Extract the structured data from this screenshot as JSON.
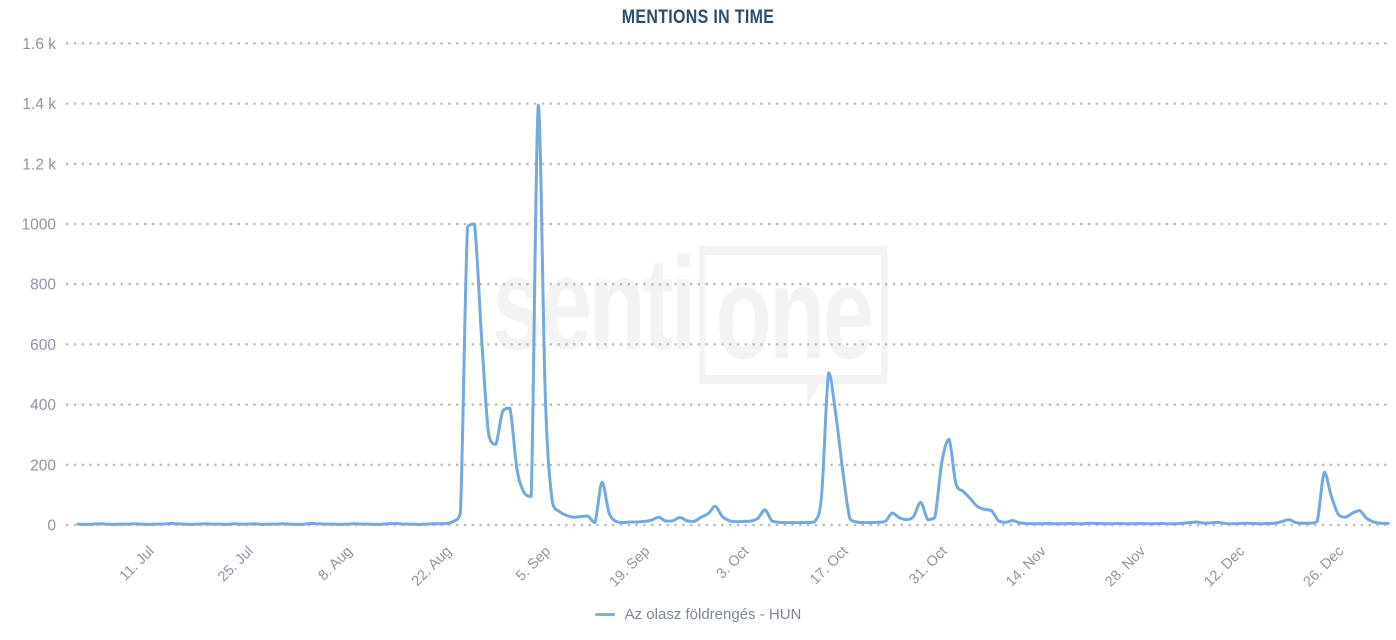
{
  "chart_data": {
    "type": "line",
    "title": "MENTIONS IN TIME",
    "xlabel": "",
    "ylabel": "",
    "ylim": [
      0,
      1600
    ],
    "grid": "horizontal dotted",
    "legend_position": "bottom-center",
    "y_ticks": [
      {
        "label": "1.6 k",
        "value": 1600
      },
      {
        "label": "1.4 k",
        "value": 1400
      },
      {
        "label": "1.2 k",
        "value": 1200
      },
      {
        "label": "1000",
        "value": 1000
      },
      {
        "label": "800",
        "value": 800
      },
      {
        "label": "600",
        "value": 600
      },
      {
        "label": "400",
        "value": 400
      },
      {
        "label": "200",
        "value": 200
      },
      {
        "label": "0",
        "value": 0
      }
    ],
    "x_tick_labels": [
      "11. Jul",
      "25. Jul",
      "8. Aug",
      "22. Aug",
      "5. Sep",
      "19. Sep",
      "3. Oct",
      "17. Oct",
      "31. Oct",
      "14. Nov",
      "28. Nov",
      "12. Dec",
      "26. Dec"
    ],
    "series": [
      {
        "name": "Az olasz földrengés - HUN",
        "color": "#74a9df",
        "dates": [
          "2. Jul",
          "3. Jul",
          "4. Jul",
          "5. Jul",
          "6. Jul",
          "7. Jul",
          "8. Jul",
          "9. Jul",
          "10. Jul",
          "11. Jul",
          "12. Jul",
          "13. Jul",
          "14. Jul",
          "15. Jul",
          "16. Jul",
          "17. Jul",
          "18. Jul",
          "19. Jul",
          "20. Jul",
          "21. Jul",
          "22. Jul",
          "23. Jul",
          "24. Jul",
          "25. Jul",
          "26. Jul",
          "27. Jul",
          "28. Jul",
          "29. Jul",
          "30. Jul",
          "31. Jul",
          "1. Aug",
          "2. Aug",
          "3. Aug",
          "4. Aug",
          "5. Aug",
          "6. Aug",
          "7. Aug",
          "8. Aug",
          "9. Aug",
          "10. Aug",
          "11. Aug",
          "12. Aug",
          "13. Aug",
          "14. Aug",
          "15. Aug",
          "16. Aug",
          "17. Aug",
          "18. Aug",
          "19. Aug",
          "20. Aug",
          "21. Aug",
          "22. Aug",
          "23. Aug",
          "24. Aug",
          "25. Aug",
          "26. Aug",
          "27. Aug",
          "28. Aug",
          "29. Aug",
          "30. Aug",
          "31. Aug",
          "1. Sep",
          "2. Sep",
          "3. Sep",
          "4. Sep",
          "5. Sep",
          "6. Sep",
          "7. Sep",
          "8. Sep",
          "9. Sep",
          "10. Sep",
          "11. Sep",
          "12. Sep",
          "13. Sep",
          "14. Sep",
          "15. Sep",
          "16. Sep",
          "17. Sep",
          "18. Sep",
          "19. Sep",
          "20. Sep",
          "21. Sep",
          "22. Sep",
          "23. Sep",
          "24. Sep",
          "25. Sep",
          "26. Sep",
          "27. Sep",
          "28. Sep",
          "29. Sep",
          "30. Sep",
          "1. Oct",
          "2. Oct",
          "3. Oct",
          "4. Oct",
          "5. Oct",
          "6. Oct",
          "7. Oct",
          "8. Oct",
          "9. Oct",
          "10. Oct",
          "11. Oct",
          "12. Oct",
          "13. Oct",
          "14. Oct",
          "15. Oct",
          "16. Oct",
          "17. Oct",
          "18. Oct",
          "19. Oct",
          "20. Oct",
          "21. Oct",
          "22. Oct",
          "23. Oct",
          "24. Oct",
          "25. Oct",
          "26. Oct",
          "27. Oct",
          "28. Oct",
          "29. Oct",
          "30. Oct",
          "31. Oct",
          "1. Nov",
          "2. Nov",
          "3. Nov",
          "4. Nov",
          "5. Nov",
          "6. Nov",
          "7. Nov",
          "8. Nov",
          "9. Nov",
          "10. Nov",
          "11. Nov",
          "12. Nov",
          "13. Nov",
          "14. Nov",
          "15. Nov",
          "16. Nov",
          "17. Nov",
          "18. Nov",
          "19. Nov",
          "20. Nov",
          "21. Nov",
          "22. Nov",
          "23. Nov",
          "24. Nov",
          "25. Nov",
          "26. Nov",
          "27. Nov",
          "28. Nov",
          "29. Nov",
          "30. Nov",
          "1. Dec",
          "2. Dec",
          "3. Dec",
          "4. Dec",
          "5. Dec",
          "6. Dec",
          "7. Dec",
          "8. Dec",
          "9. Dec",
          "10. Dec",
          "11. Dec",
          "12. Dec",
          "13. Dec",
          "14. Dec",
          "15. Dec",
          "16. Dec",
          "17. Dec",
          "18. Dec",
          "19. Dec",
          "20. Dec",
          "21. Dec",
          "22. Dec",
          "23. Dec",
          "24. Dec",
          "25. Dec",
          "26. Dec",
          "27. Dec",
          "28. Dec",
          "29. Dec",
          "30. Dec",
          "31. Dec",
          "1. Jan",
          "2. Jan",
          "3. Jan"
        ],
        "values": [
          3,
          2,
          3,
          4,
          3,
          2,
          3,
          3,
          4,
          3,
          2,
          3,
          3,
          5,
          4,
          3,
          2,
          3,
          4,
          3,
          3,
          2,
          4,
          3,
          3,
          4,
          2,
          3,
          3,
          4,
          3,
          2,
          3,
          5,
          4,
          3,
          3,
          2,
          3,
          4,
          3,
          3,
          2,
          3,
          4,
          5,
          3,
          3,
          2,
          3,
          4,
          4,
          5,
          12,
          40,
          990,
          1000,
          620,
          300,
          268,
          380,
          388,
          185,
          108,
          95,
          1395,
          420,
          75,
          45,
          32,
          26,
          28,
          30,
          8,
          142,
          40,
          12,
          8,
          10,
          10,
          12,
          16,
          26,
          13,
          14,
          25,
          14,
          12,
          26,
          38,
          62,
          28,
          14,
          11,
          12,
          13,
          22,
          50,
          14,
          9,
          8,
          8,
          8,
          8,
          10,
          95,
          505,
          370,
          180,
          22,
          10,
          8,
          8,
          9,
          12,
          40,
          24,
          18,
          28,
          75,
          18,
          25,
          210,
          285,
          135,
          112,
          88,
          62,
          52,
          48,
          14,
          9,
          15,
          7,
          5,
          4,
          4,
          5,
          4,
          4,
          5,
          4,
          4,
          6,
          5,
          4,
          4,
          5,
          4,
          4,
          5,
          4,
          4,
          5,
          4,
          4,
          6,
          8,
          10,
          6,
          7,
          9,
          5,
          4,
          5,
          6,
          5,
          4,
          5,
          6,
          11,
          18,
          8,
          6,
          6,
          12,
          175,
          95,
          35,
          26,
          40,
          48,
          22,
          10,
          6,
          5
        ]
      }
    ]
  },
  "watermark": {
    "text_left": "senti",
    "text_boxed": "one"
  },
  "colors": {
    "series_line": "#74a9df",
    "legend_dash": "#7cb0e4",
    "title_text": "#2e4e6c",
    "axis_label_text": "#8d95a4",
    "gridline_dots": "#bcbcbc",
    "legend_text": "#7d8794",
    "watermark_gray": "#f3f3f6"
  }
}
